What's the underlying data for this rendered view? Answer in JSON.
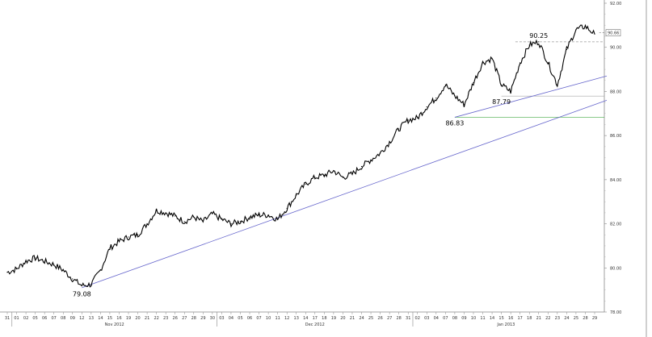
{
  "chart_data": {
    "type": "line",
    "title": "",
    "xlabel": "",
    "ylabel": "",
    "ylim": [
      78.0,
      92.0
    ],
    "y_ticks": [
      "78.00",
      "80.00",
      "82.00",
      "84.00",
      "86.00",
      "88.00",
      "90.00",
      "92.00"
    ],
    "x_ticks": [
      "31",
      "01",
      "02",
      "05",
      "06",
      "07",
      "08",
      "09",
      "12",
      "13",
      "14",
      "15",
      "16",
      "19",
      "20",
      "21",
      "22",
      "23",
      "26",
      "27",
      "28",
      "29",
      "30",
      "03",
      "04",
      "05",
      "06",
      "07",
      "10",
      "11",
      "12",
      "13",
      "14",
      "17",
      "18",
      "19",
      "20",
      "21",
      "24",
      "25",
      "26",
      "27",
      "28",
      "31",
      "02",
      "03",
      "04",
      "07",
      "08",
      "09",
      "10",
      "11",
      "14",
      "15",
      "16",
      "17",
      "18",
      "21",
      "22",
      "23",
      "24",
      "25",
      "28",
      "29"
    ],
    "month_labels": [
      "Nov 2012",
      "Dec 2012",
      "Jan 2013"
    ],
    "series": [
      {
        "x_index": [
          0,
          1,
          2,
          3,
          4,
          5,
          6,
          7,
          8,
          9,
          10,
          11,
          12,
          13,
          14,
          15,
          16,
          17,
          18,
          19,
          20,
          21,
          22,
          23,
          24,
          25,
          26,
          27,
          28,
          29,
          30,
          31,
          32,
          33,
          34,
          35,
          36,
          37,
          38,
          39,
          40,
          41,
          42,
          43,
          44,
          45,
          46,
          47,
          48,
          49,
          50,
          51,
          52,
          53,
          54,
          55,
          56,
          57,
          58,
          59,
          60,
          61,
          62,
          63
        ],
        "values": [
          79.8,
          79.95,
          80.3,
          80.45,
          80.3,
          80.15,
          79.9,
          79.5,
          79.2,
          79.25,
          79.9,
          80.9,
          81.2,
          81.4,
          81.5,
          82.0,
          82.6,
          82.5,
          82.35,
          82.1,
          82.3,
          82.1,
          82.45,
          82.2,
          82.0,
          82.1,
          82.3,
          82.4,
          82.4,
          82.2,
          82.7,
          83.3,
          83.8,
          84.1,
          84.2,
          84.4,
          84.1,
          84.25,
          84.6,
          84.9,
          85.2,
          85.7,
          86.3,
          86.7,
          86.8,
          87.3,
          87.7,
          88.3,
          87.8,
          87.4,
          88.4,
          89.3,
          89.5,
          88.3,
          88.0,
          89.3,
          90.1,
          90.25,
          89.3,
          88.3,
          89.9,
          90.8,
          90.95,
          90.6
        ]
      }
    ],
    "current_value": "90.66",
    "annotations": [
      {
        "label": "79.08",
        "x_index": 8,
        "value": 79.08
      },
      {
        "label": "86.83",
        "x_index": 48,
        "value": 86.83
      },
      {
        "label": "87.79",
        "x_index": 53,
        "value": 87.79
      },
      {
        "label": "90.25",
        "x_index": 57,
        "value": 90.25
      }
    ],
    "trendlines": [
      {
        "from": {
          "x_index": 8,
          "value": 79.1
        },
        "to": {
          "x_index": 64.3,
          "value": 87.6
        },
        "color": "#6666cc"
      },
      {
        "from": {
          "x_index": 48,
          "value": 86.83
        },
        "to": {
          "x_index": 64.3,
          "value": 88.7
        },
        "color": "#6666cc"
      }
    ],
    "horizontal_lines": [
      {
        "value": 90.25,
        "x_from_index": 54.5,
        "color": "#999999",
        "style": "dashed"
      },
      {
        "value": 87.79,
        "x_from_index": 53,
        "color": "#aaaaaa",
        "style": "solid"
      },
      {
        "value": 86.83,
        "x_from_index": 48,
        "color": "#44aa44",
        "style": "solid"
      }
    ],
    "colors": {
      "price": "#000000",
      "trendline": "#6666cc",
      "support_green": "#44aa44",
      "grid": "#bbbbbb"
    },
    "grid": false,
    "legend": "none"
  }
}
